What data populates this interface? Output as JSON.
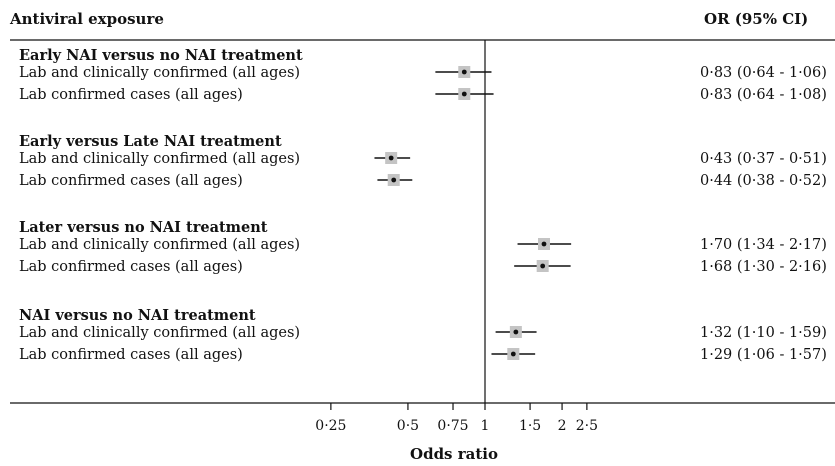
{
  "chart_data": {
    "type": "forest",
    "header": {
      "label_col": "Antiviral exposure",
      "value_col": "OR (95% CI)"
    },
    "xlabel": "Odds ratio",
    "x_scale": "log",
    "xlim": [
      0.2,
      3.0
    ],
    "reference_line": 1,
    "x_ticks": [
      {
        "v": 0.25,
        "label": "0·25"
      },
      {
        "v": 0.5,
        "label": "0·5"
      },
      {
        "v": 0.75,
        "label": "0·75"
      },
      {
        "v": 1,
        "label": "1"
      },
      {
        "v": 1.5,
        "label": "1·5"
      },
      {
        "v": 2,
        "label": "2"
      },
      {
        "v": 2.5,
        "label": "2·5"
      }
    ],
    "groups": [
      {
        "title": "Early NAI versus no NAI treatment",
        "rows": [
          {
            "label": "Lab and clinically confirmed (all ages)",
            "or": 0.83,
            "lo": 0.64,
            "hi": 1.06,
            "text": "0·83 (0·64 - 1·06)"
          },
          {
            "label": "Lab confirmed cases (all ages)",
            "or": 0.83,
            "lo": 0.64,
            "hi": 1.08,
            "text": "0·83 (0·64 - 1·08)"
          }
        ]
      },
      {
        "title": "Early versus Late NAI treatment",
        "rows": [
          {
            "label": "Lab and clinically confirmed (all ages)",
            "or": 0.43,
            "lo": 0.37,
            "hi": 0.51,
            "text": "0·43 (0·37 - 0·51)"
          },
          {
            "label": "Lab confirmed cases (all ages)",
            "or": 0.44,
            "lo": 0.38,
            "hi": 0.52,
            "text": "0·44 (0·38 - 0·52)"
          }
        ]
      },
      {
        "title": "Later versus no NAI treatment",
        "rows": [
          {
            "label": "Lab and clinically confirmed (all ages)",
            "or": 1.7,
            "lo": 1.34,
            "hi": 2.17,
            "text": "1·70 (1·34 - 2·17)"
          },
          {
            "label": "Lab confirmed cases (all ages)",
            "or": 1.68,
            "lo": 1.3,
            "hi": 2.16,
            "text": "1·68 (1·30 - 2·16)"
          }
        ]
      },
      {
        "title": "NAI versus no NAI treatment",
        "rows": [
          {
            "label": "Lab and clinically confirmed (all ages)",
            "or": 1.32,
            "lo": 1.1,
            "hi": 1.59,
            "text": "1·32 (1·10 - 1·59)"
          },
          {
            "label": "Lab confirmed cases (all ages)",
            "or": 1.29,
            "lo": 1.06,
            "hi": 1.57,
            "text": "1·29 (1·06 - 1·57)"
          }
        ]
      }
    ],
    "colors": {
      "ink": "#111111",
      "marker_box": "#c4c4c4"
    }
  }
}
